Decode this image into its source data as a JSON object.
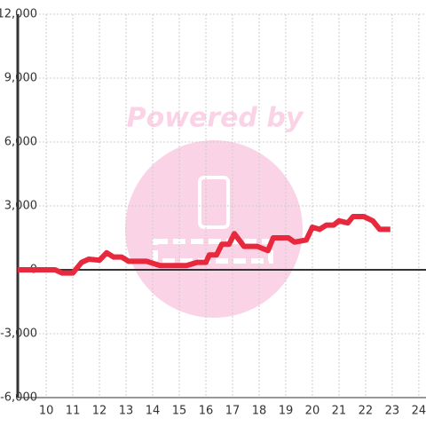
{
  "chart_data": {
    "type": "line",
    "watermark": "Powered by",
    "x": [
      8.93,
      10.33,
      10.6,
      11.0,
      11.33,
      11.6,
      12.0,
      12.27,
      12.53,
      12.83,
      13.1,
      13.77,
      14.27,
      15.27,
      15.67,
      16.0,
      16.13,
      16.4,
      16.6,
      16.87,
      17.07,
      17.43,
      17.93,
      18.33,
      18.53,
      19.1,
      19.33,
      19.77,
      20.0,
      20.27,
      20.53,
      20.8,
      21.0,
      21.33,
      21.53,
      21.93,
      22.27,
      22.53,
      22.93
    ],
    "series": [
      {
        "color": "#e8283c",
        "values": [
          0,
          0,
          -150,
          -150,
          350,
          500,
          450,
          800,
          600,
          600,
          400,
          400,
          200,
          200,
          350,
          350,
          700,
          700,
          1200,
          1200,
          1700,
          1100,
          1100,
          900,
          1500,
          1500,
          1300,
          1400,
          2000,
          1900,
          2100,
          2100,
          2300,
          2200,
          2500,
          2500,
          2300,
          1900,
          1900
        ]
      }
    ],
    "xlim": [
      8.93,
      24.27
    ],
    "xticks": [
      10,
      11,
      12,
      13,
      14,
      15,
      16,
      17,
      18,
      19,
      20,
      21,
      22,
      23,
      24
    ],
    "ylim": [
      -6000,
      12000
    ],
    "yticks": [
      {
        "value": -6000,
        "label": "-6,000"
      },
      {
        "value": -3000,
        "label": "-3,000"
      },
      0,
      {
        "value": 3000,
        "label": "3,000"
      },
      {
        "value": 6000,
        "label": "6,000"
      },
      {
        "value": 9000,
        "label": "9,000"
      },
      {
        "value": 12000,
        "label": "12,000"
      }
    ],
    "grid": true
  }
}
